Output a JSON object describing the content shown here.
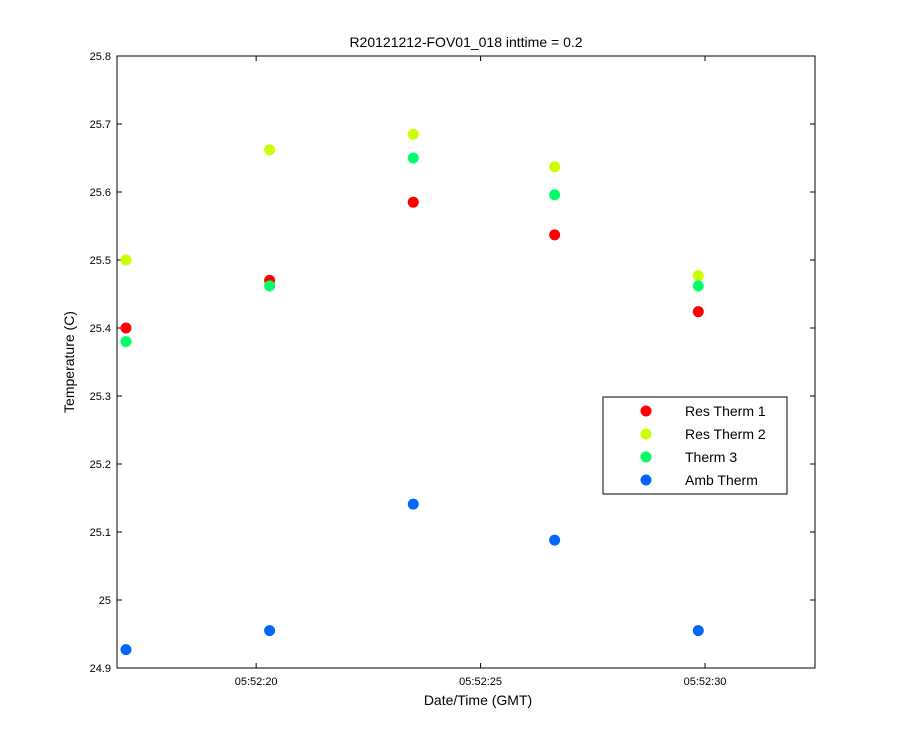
{
  "chart_data": {
    "type": "scatter",
    "title": "R20121212-FOV01_018 inttime = 0.2",
    "xlabel": "Date/Time (GMT)",
    "ylabel": "Temperature (C)",
    "x_ticks": [
      "05:52:20",
      "05:52:25",
      "05:52:30"
    ],
    "x_tick_seconds": [
      20,
      25,
      30
    ],
    "xlim_seconds": [
      16.9,
      32.45
    ],
    "ylim": [
      24.9,
      25.8
    ],
    "y_ticks": [
      24.9,
      25,
      25.1,
      25.2,
      25.3,
      25.4,
      25.5,
      25.6,
      25.7,
      25.8
    ],
    "y_tick_labels": [
      "24.9",
      "25",
      "25.1",
      "25.2",
      "25.3",
      "25.4",
      "25.5",
      "25.6",
      "25.7",
      "25.8"
    ],
    "x_seconds": [
      17.1,
      20.3,
      23.5,
      26.65,
      29.85
    ],
    "grid": false,
    "legend_position": "right",
    "series": [
      {
        "name": "Res Therm 1",
        "color": "#ff0000",
        "values": [
          25.4,
          25.47,
          25.585,
          25.537,
          25.424
        ]
      },
      {
        "name": "Res Therm 2",
        "color": "#ccff00",
        "values": [
          25.5,
          25.662,
          25.685,
          25.637,
          25.477
        ]
      },
      {
        "name": "Therm 3",
        "color": "#00ff66",
        "values": [
          25.38,
          25.462,
          25.65,
          25.596,
          25.462
        ]
      },
      {
        "name": "Amb Therm",
        "color": "#0066ff",
        "values": [
          24.927,
          24.955,
          25.141,
          25.088,
          24.955
        ]
      }
    ]
  }
}
